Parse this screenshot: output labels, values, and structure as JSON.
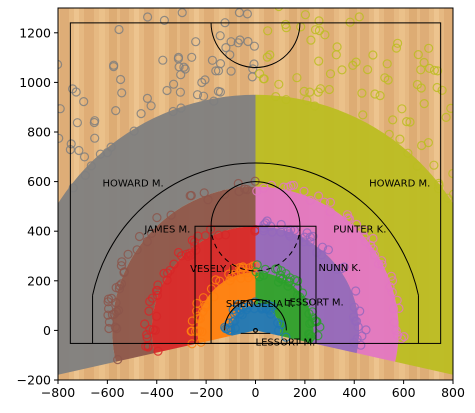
{
  "chart_data": {
    "type": "scatter",
    "title": "",
    "xlabel": "",
    "ylabel": "",
    "xlim": [
      -800,
      800
    ],
    "ylim": [
      -200,
      1300
    ],
    "xticks": [
      -800,
      -600,
      -400,
      -200,
      0,
      200,
      400,
      600,
      800
    ],
    "yticks": [
      -200,
      0,
      200,
      400,
      600,
      800,
      1000,
      1200
    ],
    "grid": false,
    "legend": "none",
    "background": "wood court texture",
    "court": {
      "boundary": {
        "x": [
          -750,
          750
        ],
        "y": [
          -52.5,
          1240
        ]
      },
      "hoop": {
        "x": 0,
        "y": 0
      },
      "key_outer": {
        "x": [
          -245,
          245
        ],
        "y": [
          -52.5,
          420
        ]
      },
      "key_inner": {
        "x": [
          -180,
          180
        ],
        "y": [
          -52.5,
          420
        ]
      },
      "free_throw_circle_center_y": 420,
      "three_point_radius": 675,
      "corner_three_x": 660,
      "center_circle_y": 1240
    },
    "zones": [
      {
        "name": "LESSORT M.",
        "side": "center",
        "r": [
          0,
          100
        ],
        "color": "#1f77b4",
        "label_x": 0,
        "label_y": -60
      },
      {
        "name": "SHENGELIA T.",
        "side": "left",
        "r": [
          100,
          235
        ],
        "color": "#ff7f0e",
        "label_x": -120,
        "label_y": 95
      },
      {
        "name": "LESSORT M.",
        "side": "right",
        "r": [
          100,
          235
        ],
        "color": "#2ca02c",
        "label_x": 115,
        "label_y": 100
      },
      {
        "name": "VESELY J.",
        "side": "left",
        "r": [
          235,
          420
        ],
        "color": "#d62728",
        "label_x": -265,
        "label_y": 235
      },
      {
        "name": "NUNN K.",
        "side": "right",
        "r": [
          235,
          420
        ],
        "color": "#9467bd",
        "label_x": 255,
        "label_y": 240
      },
      {
        "name": "JAMES M.",
        "side": "left",
        "r": [
          420,
          580
        ],
        "color": "#8c564b",
        "label_x": -450,
        "label_y": 395
      },
      {
        "name": "PUNTER K.",
        "side": "right",
        "r": [
          420,
          580
        ],
        "color": "#e377c2",
        "label_x": 315,
        "label_y": 395
      },
      {
        "name": "HOWARD M.",
        "side": "left",
        "r": [
          580,
          950
        ],
        "color": "#7f7f7f",
        "label_x": -620,
        "label_y": 580
      },
      {
        "name": "HOWARD M.",
        "side": "right",
        "r": [
          580,
          950
        ],
        "color": "#bcbd22",
        "label_x": 460,
        "label_y": 580
      }
    ]
  }
}
